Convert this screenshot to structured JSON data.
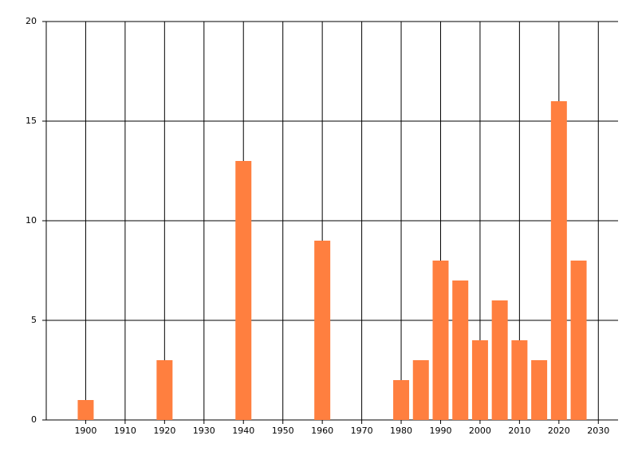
{
  "chart_data": {
    "type": "bar",
    "x": [
      1900,
      1920,
      1940,
      1960,
      1980,
      1985,
      1990,
      1995,
      2000,
      2005,
      2010,
      2015,
      2020,
      2025
    ],
    "values": [
      1,
      3,
      13,
      9,
      2,
      3,
      8,
      7,
      4,
      6,
      4,
      3,
      16,
      8
    ],
    "color": "#ff7f3f",
    "xlim": [
      1890,
      2035
    ],
    "xticks": [
      1900,
      1910,
      1920,
      1930,
      1940,
      1950,
      1960,
      1970,
      1980,
      1990,
      2000,
      2010,
      2020,
      2030
    ],
    "ylim": [
      0,
      20
    ],
    "yticks": [
      0,
      5,
      10,
      15,
      20
    ],
    "grid": true
  }
}
